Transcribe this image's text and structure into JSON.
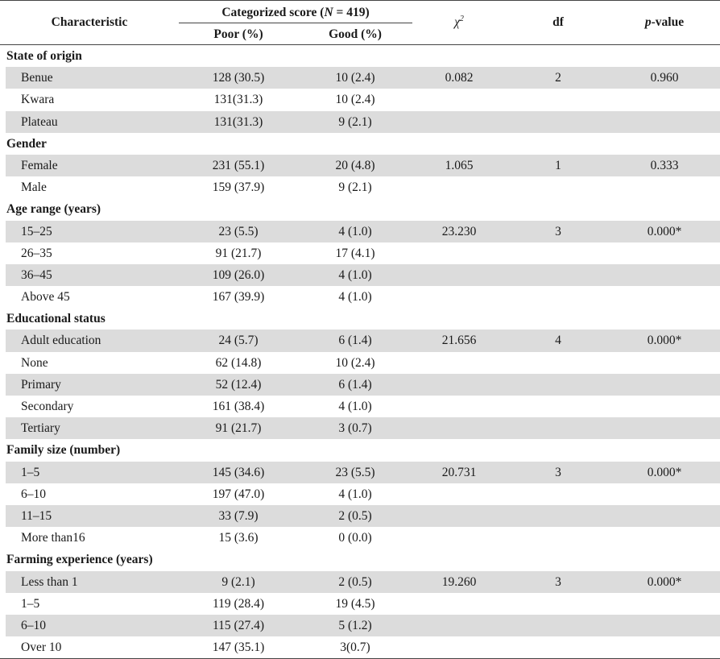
{
  "headers": {
    "characteristic": "Characteristic",
    "categorized_prefix": "Categorized score (",
    "categorized_n": "N",
    "categorized_suffix": " = 419)",
    "poor": "Poor (%)",
    "good": "Good (%)",
    "chi_base": "χ",
    "chi_sup": "2",
    "df": "df",
    "p_italic": "p",
    "p_rest": "-value"
  },
  "rows": [
    {
      "type": "section",
      "label": "State of origin"
    },
    {
      "type": "data",
      "grey": true,
      "label": "Benue",
      "poor": "128 (30.5)",
      "good": "10 (2.4)",
      "chi": "0.082",
      "df": "2",
      "p": "0.960"
    },
    {
      "type": "data",
      "grey": false,
      "label": "Kwara",
      "poor": "131(31.3)",
      "good": "10 (2.4)",
      "chi": "",
      "df": "",
      "p": ""
    },
    {
      "type": "data",
      "grey": true,
      "label": "Plateau",
      "poor": "131(31.3)",
      "good": "9 (2.1)",
      "chi": "",
      "df": "",
      "p": ""
    },
    {
      "type": "section",
      "label": "Gender"
    },
    {
      "type": "data",
      "grey": true,
      "label": "Female",
      "poor": "231 (55.1)",
      "good": "20 (4.8)",
      "chi": "1.065",
      "df": "1",
      "p": "0.333"
    },
    {
      "type": "data",
      "grey": false,
      "label": "Male",
      "poor": "159 (37.9)",
      "good": "9 (2.1)",
      "chi": "",
      "df": "",
      "p": ""
    },
    {
      "type": "section",
      "label": "Age range (years)"
    },
    {
      "type": "data",
      "grey": true,
      "label": "15–25",
      "poor": "23 (5.5)",
      "good": "4 (1.0)",
      "chi": "23.230",
      "df": "3",
      "p": "0.000*"
    },
    {
      "type": "data",
      "grey": false,
      "label": "26–35",
      "poor": "91 (21.7)",
      "good": "17 (4.1)",
      "chi": "",
      "df": "",
      "p": ""
    },
    {
      "type": "data",
      "grey": true,
      "label": "36–45",
      "poor": "109 (26.0)",
      "good": "4 (1.0)",
      "chi": "",
      "df": "",
      "p": ""
    },
    {
      "type": "data",
      "grey": false,
      "label": "Above 45",
      "poor": "167 (39.9)",
      "good": "4 (1.0)",
      "chi": "",
      "df": "",
      "p": ""
    },
    {
      "type": "section",
      "label": "Educational status"
    },
    {
      "type": "data",
      "grey": true,
      "label": "Adult education",
      "poor": "24 (5.7)",
      "good": "6 (1.4)",
      "chi": "21.656",
      "df": "4",
      "p": "0.000*"
    },
    {
      "type": "data",
      "grey": false,
      "label": "None",
      "poor": "62 (14.8)",
      "good": "10 (2.4)",
      "chi": "",
      "df": "",
      "p": ""
    },
    {
      "type": "data",
      "grey": true,
      "label": "Primary",
      "poor": "52 (12.4)",
      "good": "6 (1.4)",
      "chi": "",
      "df": "",
      "p": ""
    },
    {
      "type": "data",
      "grey": false,
      "label": "Secondary",
      "poor": "161 (38.4)",
      "good": "4 (1.0)",
      "chi": "",
      "df": "",
      "p": ""
    },
    {
      "type": "data",
      "grey": true,
      "label": "Tertiary",
      "poor": "91 (21.7)",
      "good": "3 (0.7)",
      "chi": "",
      "df": "",
      "p": ""
    },
    {
      "type": "section",
      "label": "Family size (number)"
    },
    {
      "type": "data",
      "grey": true,
      "label": "1–5",
      "poor": "145 (34.6)",
      "good": "23 (5.5)",
      "chi": "20.731",
      "df": "3",
      "p": "0.000*"
    },
    {
      "type": "data",
      "grey": false,
      "label": "6–10",
      "poor": "197 (47.0)",
      "good": "4 (1.0)",
      "chi": "",
      "df": "",
      "p": ""
    },
    {
      "type": "data",
      "grey": true,
      "label": "11–15",
      "poor": "33 (7.9)",
      "good": "2 (0.5)",
      "chi": "",
      "df": "",
      "p": ""
    },
    {
      "type": "data",
      "grey": false,
      "label": "More than16",
      "poor": "15 (3.6)",
      "good": "0 (0.0)",
      "chi": "",
      "df": "",
      "p": ""
    },
    {
      "type": "section",
      "label": "Farming experience (years)"
    },
    {
      "type": "data",
      "grey": true,
      "label": "Less than 1",
      "poor": "9 (2.1)",
      "good": "2 (0.5)",
      "chi": "19.260",
      "df": "3",
      "p": "0.000*"
    },
    {
      "type": "data",
      "grey": false,
      "label": "1–5",
      "poor": "119 (28.4)",
      "good": "19 (4.5)",
      "chi": "",
      "df": "",
      "p": ""
    },
    {
      "type": "data",
      "grey": true,
      "label": "6–10",
      "poor": "115 (27.4)",
      "good": "5 (1.2)",
      "chi": "",
      "df": "",
      "p": ""
    },
    {
      "type": "data",
      "grey": false,
      "label": "Over 10",
      "poor": "147 (35.1)",
      "good": "3(0.7)",
      "chi": "",
      "df": "",
      "p": ""
    }
  ]
}
